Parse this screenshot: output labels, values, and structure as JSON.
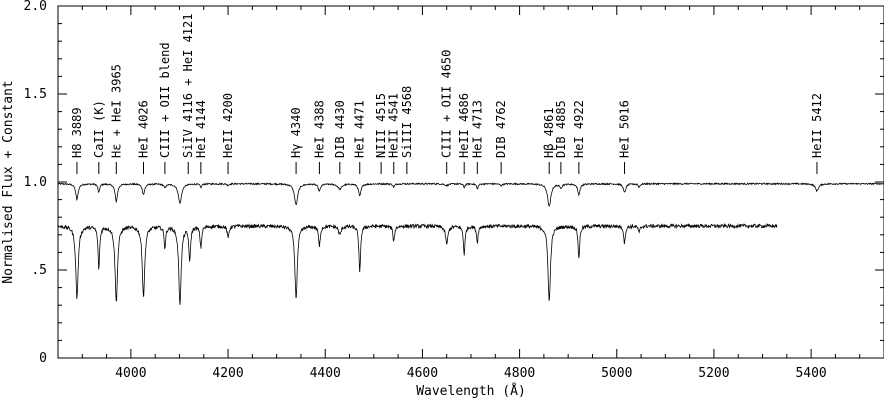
{
  "chart_data": {
    "type": "line",
    "xlabel": "Wavelength (Å)",
    "ylabel": "Normalised Flux + Constant",
    "xlim": [
      3850,
      5550
    ],
    "ylim": [
      0,
      2.0
    ],
    "x_ticks": [
      4000,
      4200,
      4400,
      4600,
      4800,
      5000,
      5200,
      5400
    ],
    "y_ticks": [
      {
        "value": 0,
        "label": "0"
      },
      {
        "value": 0.5,
        "label": ".5"
      },
      {
        "value": 1.0,
        "label": "1.0"
      },
      {
        "value": 1.5,
        "label": "1.5"
      },
      {
        "value": 2.0,
        "label": "2.0"
      }
    ],
    "grid": false,
    "legend": "none",
    "line_identifications": [
      {
        "label": "H8 3889",
        "x": 3889
      },
      {
        "label": "CaII (K)",
        "x": 3934
      },
      {
        "label": "Hε + HeI 3965",
        "x": 3970
      },
      {
        "label": "HeI 4026",
        "x": 4026
      },
      {
        "label": "CIII + OII blend",
        "x": 4070
      },
      {
        "label": "SiIV 4116 + HeI 4121",
        "x": 4118
      },
      {
        "label": "HeI 4144",
        "x": 4144
      },
      {
        "label": "HeII 4200",
        "x": 4200
      },
      {
        "label": "Hγ 4340",
        "x": 4340
      },
      {
        "label": "HeI 4388",
        "x": 4388
      },
      {
        "label": "DIB 4430",
        "x": 4430
      },
      {
        "label": "HeI 4471",
        "x": 4471
      },
      {
        "label": "NIII 4515",
        "x": 4515
      },
      {
        "label": "HeII 4541",
        "x": 4541
      },
      {
        "label": "SiIII 4568",
        "x": 4568
      },
      {
        "label": "CIII + OII 4650",
        "x": 4650
      },
      {
        "label": "HeII 4686",
        "x": 4686
      },
      {
        "label": "HeI 4713",
        "x": 4713
      },
      {
        "label": "DIB 4762",
        "x": 4762
      },
      {
        "label": "Hβ 4861",
        "x": 4861
      },
      {
        "label": "DIB 4885",
        "x": 4885
      },
      {
        "label": "HeI 4922",
        "x": 4922
      },
      {
        "label": "HeI 5016",
        "x": 5016
      },
      {
        "label": "HeII 5412",
        "x": 5412
      }
    ],
    "series": [
      {
        "x_range": [
          3850,
          5550
        ],
        "continuum": 0.99,
        "noise": 0.004,
        "color": "#000000",
        "features": [
          {
            "x": 3889,
            "depth": 0.09,
            "width": 3
          },
          {
            "x": 3934,
            "depth": 0.05,
            "width": 2
          },
          {
            "x": 3970,
            "depth": 0.1,
            "width": 3
          },
          {
            "x": 4026,
            "depth": 0.06,
            "width": 3
          },
          {
            "x": 4070,
            "depth": 0.02,
            "width": 3
          },
          {
            "x": 4101,
            "depth": 0.11,
            "width": 4
          },
          {
            "x": 4144,
            "depth": 0.02,
            "width": 2
          },
          {
            "x": 4200,
            "depth": 0.01,
            "width": 2
          },
          {
            "x": 4340,
            "depth": 0.12,
            "width": 4
          },
          {
            "x": 4388,
            "depth": 0.04,
            "width": 3
          },
          {
            "x": 4430,
            "depth": 0.03,
            "width": 5
          },
          {
            "x": 4471,
            "depth": 0.07,
            "width": 3
          },
          {
            "x": 4541,
            "depth": 0.02,
            "width": 2
          },
          {
            "x": 4650,
            "depth": 0.01,
            "width": 4
          },
          {
            "x": 4686,
            "depth": 0.02,
            "width": 2
          },
          {
            "x": 4713,
            "depth": 0.03,
            "width": 2
          },
          {
            "x": 4762,
            "depth": 0.01,
            "width": 3
          },
          {
            "x": 4861,
            "depth": 0.13,
            "width": 4
          },
          {
            "x": 4885,
            "depth": 0.02,
            "width": 3
          },
          {
            "x": 4922,
            "depth": 0.06,
            "width": 3
          },
          {
            "x": 5016,
            "depth": 0.05,
            "width": 3
          },
          {
            "x": 5046,
            "depth": 0.02,
            "width": 2
          },
          {
            "x": 5412,
            "depth": 0.04,
            "width": 4
          }
        ]
      },
      {
        "x_range": [
          3850,
          5330
        ],
        "continuum": 0.75,
        "noise": 0.01,
        "color": "#000000",
        "features": [
          {
            "x": 3889,
            "depth": 0.41,
            "width": 3
          },
          {
            "x": 3934,
            "depth": 0.24,
            "width": 2
          },
          {
            "x": 3970,
            "depth": 0.43,
            "width": 3
          },
          {
            "x": 4026,
            "depth": 0.4,
            "width": 3
          },
          {
            "x": 4070,
            "depth": 0.12,
            "width": 2
          },
          {
            "x": 4101,
            "depth": 0.44,
            "width": 3
          },
          {
            "x": 4121,
            "depth": 0.2,
            "width": 2
          },
          {
            "x": 4144,
            "depth": 0.12,
            "width": 2
          },
          {
            "x": 4200,
            "depth": 0.07,
            "width": 2
          },
          {
            "x": 4340,
            "depth": 0.41,
            "width": 3
          },
          {
            "x": 4388,
            "depth": 0.12,
            "width": 2
          },
          {
            "x": 4430,
            "depth": 0.05,
            "width": 3
          },
          {
            "x": 4471,
            "depth": 0.27,
            "width": 2
          },
          {
            "x": 4541,
            "depth": 0.09,
            "width": 2
          },
          {
            "x": 4650,
            "depth": 0.1,
            "width": 3
          },
          {
            "x": 4686,
            "depth": 0.16,
            "width": 2
          },
          {
            "x": 4713,
            "depth": 0.09,
            "width": 2
          },
          {
            "x": 4861,
            "depth": 0.43,
            "width": 3
          },
          {
            "x": 4922,
            "depth": 0.18,
            "width": 2
          },
          {
            "x": 5016,
            "depth": 0.1,
            "width": 2
          },
          {
            "x": 5046,
            "depth": 0.04,
            "width": 2
          }
        ]
      }
    ]
  }
}
